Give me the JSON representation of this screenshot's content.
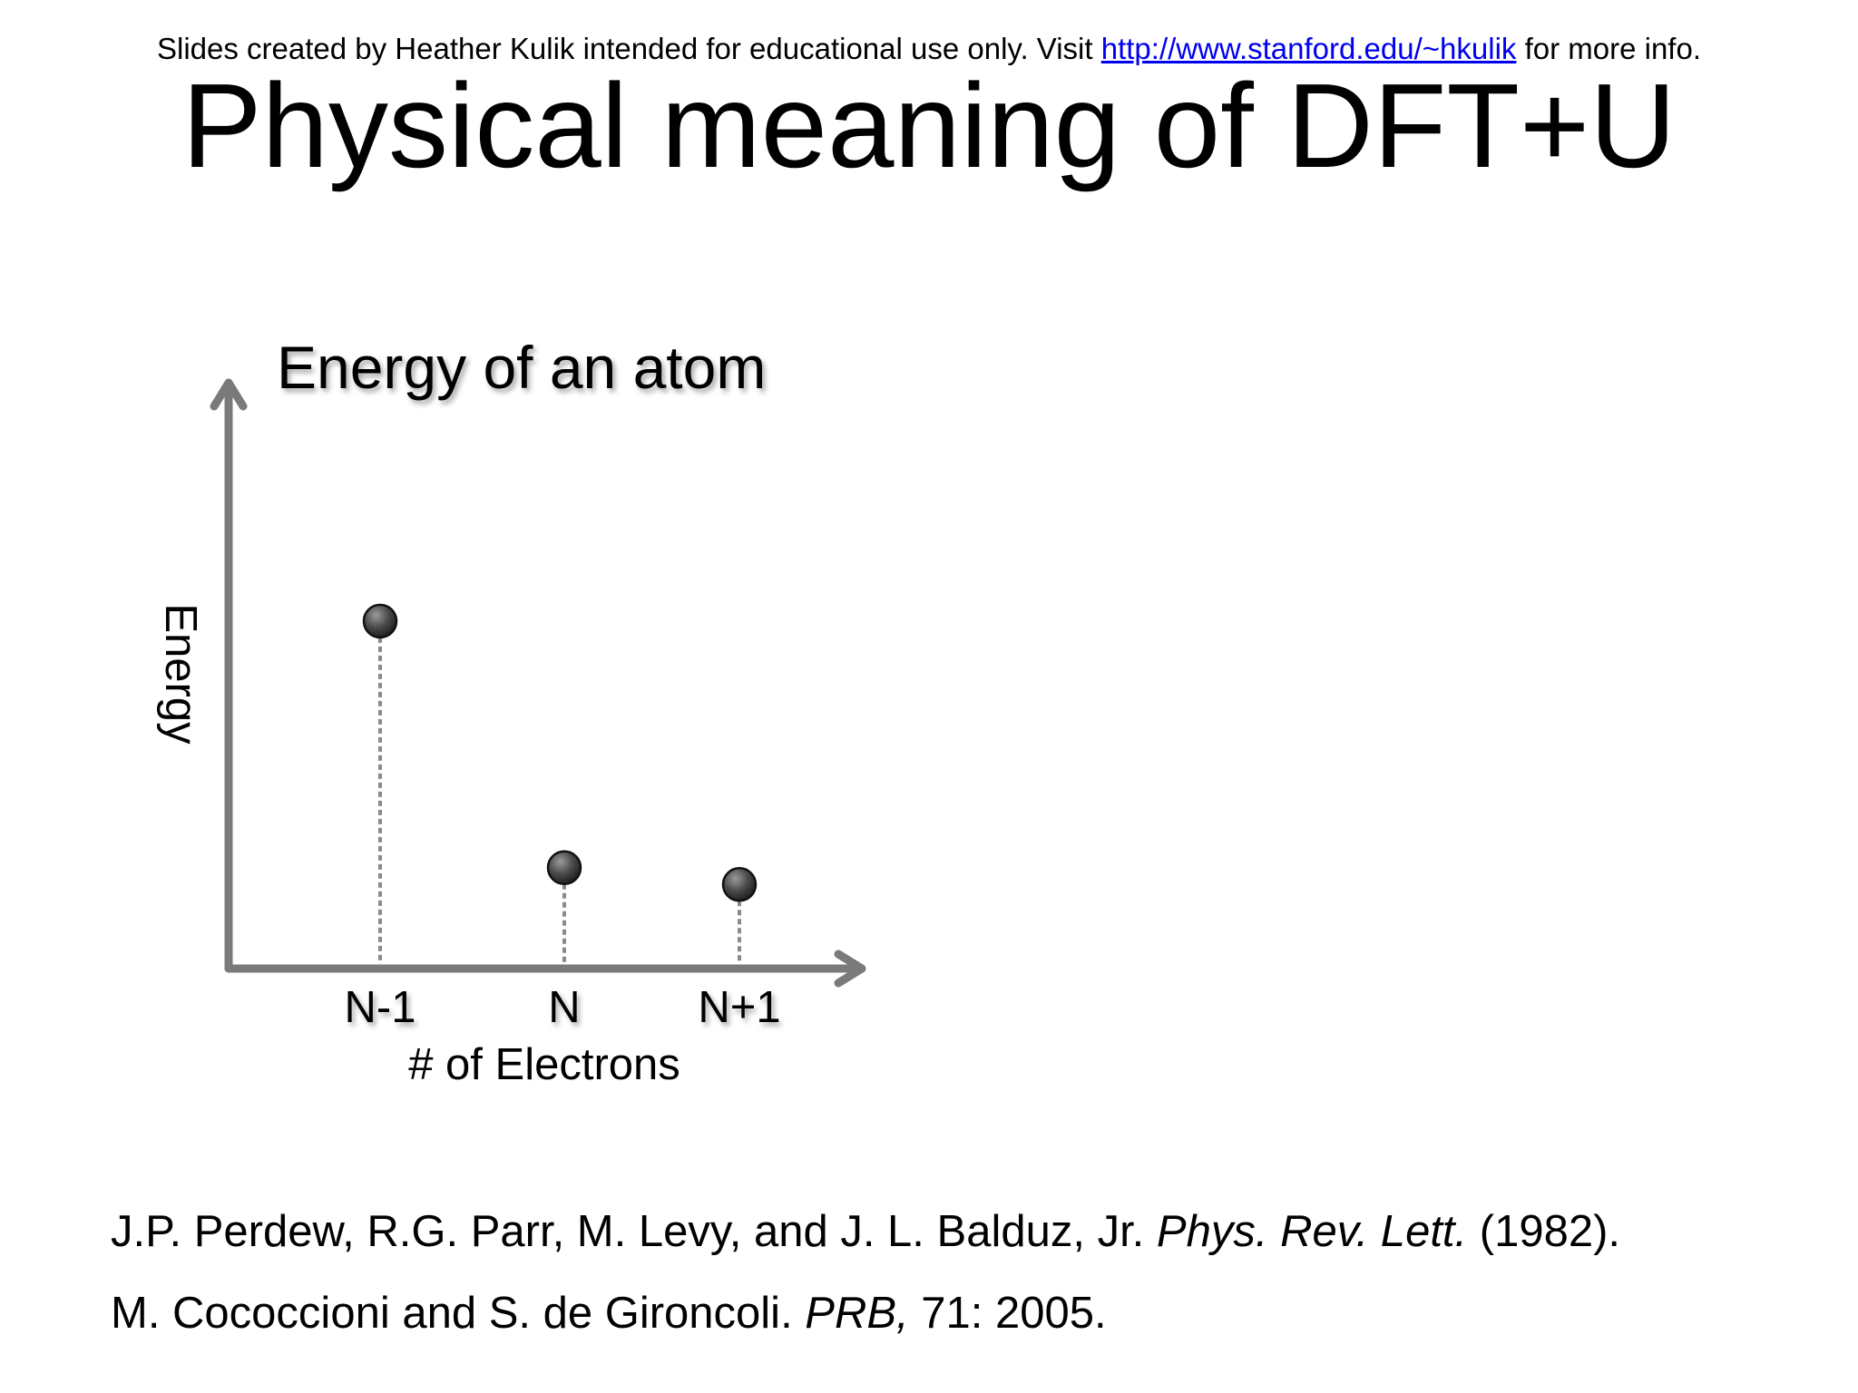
{
  "slide": {
    "credit": {
      "before": "Slides created by Heather Kulik intended for educational use only. Visit ",
      "link": "http://www.stanford.edu/~hkulik",
      "after": " for more info."
    },
    "title": "Physical meaning of DFT+U"
  },
  "chart_data": {
    "type": "scatter",
    "title": "Energy of an atom",
    "xlabel": "# of Electrons",
    "ylabel": "Energy",
    "categories": [
      "N-1",
      "N",
      "N+1"
    ],
    "values": [
      0.62,
      0.18,
      0.15
    ],
    "ylim": [
      0,
      1
    ],
    "grid": false,
    "drop_lines": true,
    "colors": {
      "axis": "#7a7a7a",
      "point": "#444444",
      "dropline": "#8a8a8a"
    }
  },
  "references": [
    {
      "authors": "J.P. Perdew, R.G. Parr, M. Levy, and J. L. Balduz, Jr. ",
      "journal": "Phys. Rev. Lett.",
      "rest": " (1982)."
    },
    {
      "authors": "M. Cococcioni and S. de Gironcoli. ",
      "journal": "PRB,",
      "rest": " 71: 2005."
    }
  ]
}
